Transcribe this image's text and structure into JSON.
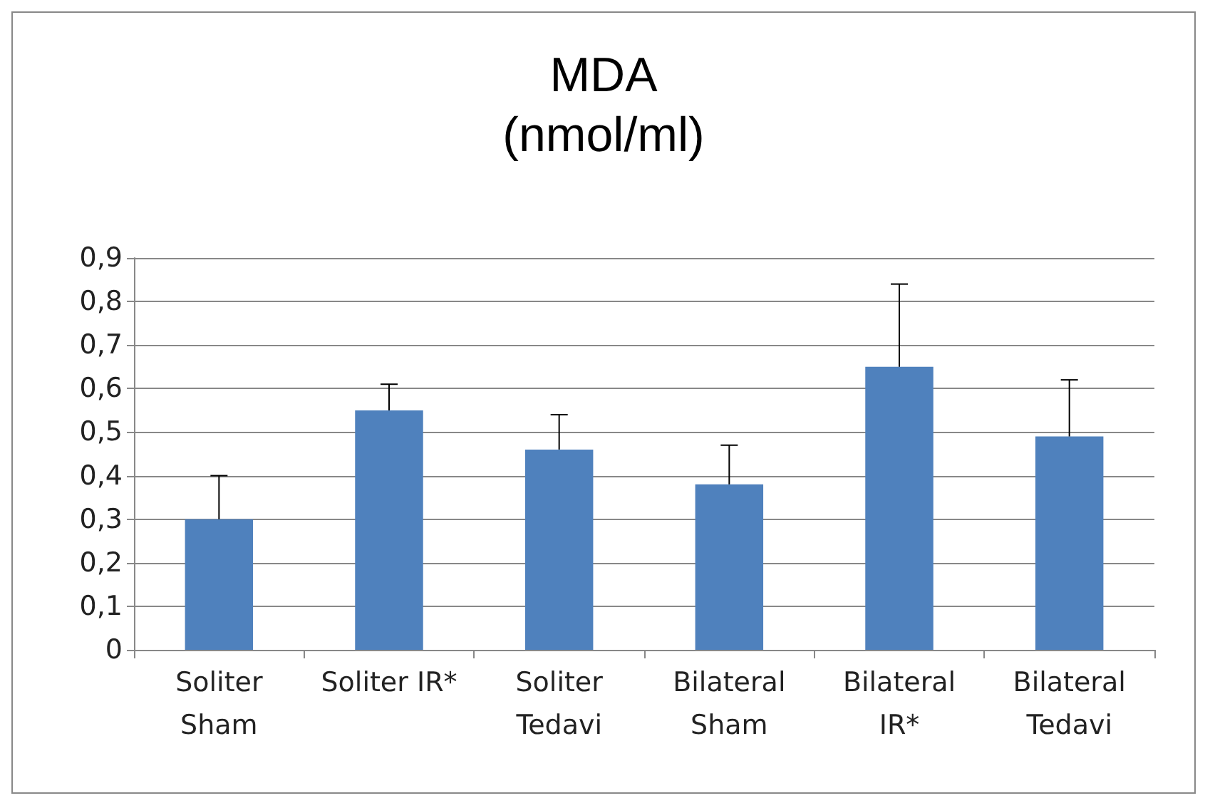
{
  "chart_data": {
    "type": "bar",
    "title": "MDA\n(nmol/ml)",
    "categories": [
      "Soliter\nSham",
      "Soliter IR*",
      "Soliter\nTedavi",
      "Bilateral\nSham",
      "Bilateral\nIR*",
      "Bilateral\nTedavi"
    ],
    "values": [
      0.3,
      0.55,
      0.46,
      0.38,
      0.65,
      0.49
    ],
    "errors": [
      [
        0.3,
        0.4
      ],
      [
        0.55,
        0.61
      ],
      [
        0.46,
        0.54
      ],
      [
        0.38,
        0.47
      ],
      [
        0.65,
        0.84
      ],
      [
        0.49,
        0.62
      ]
    ],
    "color": "#4f81bd",
    "ylim": [
      0,
      0.9
    ],
    "yticks": [
      {
        "value": 0,
        "label": "0"
      },
      {
        "value": 0.1,
        "label": "0,1"
      },
      {
        "value": 0.2,
        "label": "0,2"
      },
      {
        "value": 0.3,
        "label": "0,3"
      },
      {
        "value": 0.4,
        "label": "0,4"
      },
      {
        "value": 0.5,
        "label": "0,5"
      },
      {
        "value": 0.6,
        "label": "0,6"
      },
      {
        "value": 0.7,
        "label": "0,7"
      },
      {
        "value": 0.8,
        "label": "0,8"
      },
      {
        "value": 0.9,
        "label": "0,9"
      }
    ],
    "grid": true
  }
}
